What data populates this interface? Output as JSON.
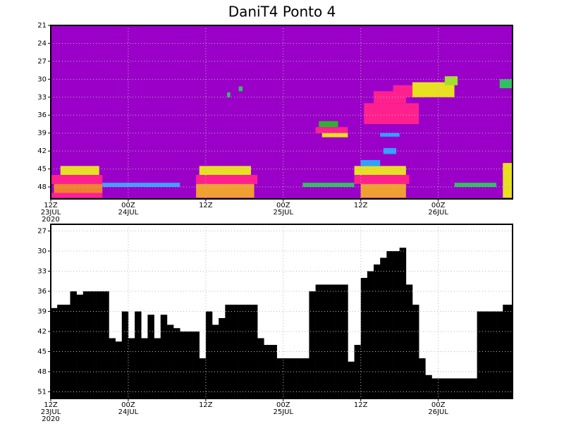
{
  "chart_data": [
    {
      "type": "field",
      "title": "DaniT4 Ponto 4",
      "background": "#9a00c8",
      "xlim": [
        0,
        71.5
      ],
      "ylim": [
        21,
        50
      ],
      "y_inverted": true,
      "grid": true,
      "xticks": [
        {
          "value": 0,
          "label": "12Z\n23JUL\n2020"
        },
        {
          "value": 12,
          "label": "00Z\n24JUL"
        },
        {
          "value": 24,
          "label": "12Z"
        },
        {
          "value": 36,
          "label": "00Z\n25JUL"
        },
        {
          "value": 48,
          "label": "12Z"
        },
        {
          "value": 60,
          "label": "00Z\n26JUL"
        }
      ],
      "yticks": [
        21,
        24,
        27,
        30,
        33,
        36,
        39,
        42,
        45,
        48
      ],
      "patches": [
        {
          "x": [
            1.5,
            7.5
          ],
          "y": [
            44.5,
            46
          ],
          "color": "#e8e020"
        },
        {
          "x": [
            0,
            8
          ],
          "y": [
            46,
            47.5
          ],
          "color": "#ff2090"
        },
        {
          "x": [
            0.5,
            8
          ],
          "y": [
            47.5,
            49
          ],
          "color": "#f08030"
        },
        {
          "x": [
            0,
            8
          ],
          "y": [
            49,
            49.8
          ],
          "color": "#ff2090"
        },
        {
          "x": [
            8,
            20
          ],
          "y": [
            47.3,
            48
          ],
          "color": "#40a0ff"
        },
        {
          "x": [
            23,
            31
          ],
          "y": [
            44.5,
            46
          ],
          "color": "#e8e020"
        },
        {
          "x": [
            22.5,
            32
          ],
          "y": [
            46,
            47.5
          ],
          "color": "#ff2090"
        },
        {
          "x": [
            22.5,
            31.5
          ],
          "y": [
            47.5,
            49.8
          ],
          "color": "#f0a030"
        },
        {
          "x": [
            39,
            47
          ],
          "y": [
            47.3,
            48
          ],
          "color": "#30c060"
        },
        {
          "x": [
            41.5,
            44.5
          ],
          "y": [
            37,
            38
          ],
          "color": "#30b030"
        },
        {
          "x": [
            41,
            46
          ],
          "y": [
            38,
            39
          ],
          "color": "#ff2090"
        },
        {
          "x": [
            42,
            46
          ],
          "y": [
            39,
            39.7
          ],
          "color": "#e8e020"
        },
        {
          "x": [
            47,
            55
          ],
          "y": [
            44.5,
            46
          ],
          "color": "#e8e020"
        },
        {
          "x": [
            47,
            55.5
          ],
          "y": [
            46,
            47.5
          ],
          "color": "#ff2090"
        },
        {
          "x": [
            48,
            55
          ],
          "y": [
            47.5,
            49.8
          ],
          "color": "#f0a030"
        },
        {
          "x": [
            48,
            51
          ],
          "y": [
            43.5,
            44.5
          ],
          "color": "#30a0ff"
        },
        {
          "x": [
            51,
            54
          ],
          "y": [
            39,
            39.6
          ],
          "color": "#30a0ff"
        },
        {
          "x": [
            51.5,
            53.5
          ],
          "y": [
            41.5,
            42.5
          ],
          "color": "#30a0ff"
        },
        {
          "x": [
            48.5,
            57
          ],
          "y": [
            34,
            37.5
          ],
          "color": "#ff2090"
        },
        {
          "x": [
            50,
            55
          ],
          "y": [
            32,
            34
          ],
          "color": "#ff2090"
        },
        {
          "x": [
            53,
            58
          ],
          "y": [
            31,
            33
          ],
          "color": "#ff2090"
        },
        {
          "x": [
            56,
            62.5
          ],
          "y": [
            30.5,
            33
          ],
          "color": "#e8e020"
        },
        {
          "x": [
            61,
            63
          ],
          "y": [
            29.5,
            31
          ],
          "color": "#a0e030"
        },
        {
          "x": [
            62.5,
            69
          ],
          "y": [
            47.3,
            48
          ],
          "color": "#30c060"
        },
        {
          "x": [
            70,
            71.5
          ],
          "y": [
            44,
            49.8
          ],
          "color": "#e8e020"
        },
        {
          "x": [
            69.5,
            71.5
          ],
          "y": [
            30,
            31.5
          ],
          "color": "#30c060"
        },
        {
          "x": [
            27.3,
            27.8
          ],
          "y": [
            32.2,
            33
          ],
          "color": "#30c060"
        },
        {
          "x": [
            29.1,
            29.7
          ],
          "y": [
            31.2,
            32
          ],
          "color": "#30c060"
        }
      ]
    },
    {
      "type": "bar",
      "color": "#000000",
      "xlim": [
        0,
        71.5
      ],
      "ylim": [
        26,
        52
      ],
      "y_inverted": true,
      "grid": true,
      "xticks": [
        {
          "value": 0,
          "label": "12Z\n23JUL\n2020"
        },
        {
          "value": 12,
          "label": "00Z\n24JUL"
        },
        {
          "value": 24,
          "label": "12Z"
        },
        {
          "value": 36,
          "label": "00Z\n25JUL"
        },
        {
          "value": 48,
          "label": "12Z"
        },
        {
          "value": 60,
          "label": "00Z\n26JUL"
        }
      ],
      "yticks": [
        27,
        30,
        33,
        36,
        39,
        42,
        45,
        48,
        51
      ],
      "x": [
        0,
        1,
        2,
        3,
        4,
        5,
        6,
        7,
        8,
        9,
        10,
        11,
        12,
        13,
        14,
        15,
        16,
        17,
        18,
        19,
        20,
        21,
        22,
        23,
        24,
        25,
        26,
        27,
        28,
        29,
        30,
        31,
        32,
        33,
        34,
        35,
        36,
        37,
        38,
        39,
        40,
        41,
        42,
        43,
        44,
        45,
        46,
        47,
        48,
        49,
        50,
        51,
        52,
        53,
        54,
        55,
        56,
        57,
        58,
        59,
        60,
        61,
        62,
        63,
        64,
        65,
        66,
        67,
        68,
        69,
        70,
        71
      ],
      "values": [
        38.5,
        38,
        38,
        36,
        36.5,
        36,
        36,
        36,
        36,
        43,
        43.5,
        39,
        43,
        39,
        43,
        39.5,
        43,
        39.5,
        41,
        41.5,
        42,
        42,
        42,
        46,
        39,
        41,
        40,
        38,
        38,
        38,
        38,
        38,
        43,
        44,
        44,
        46,
        46,
        46,
        46,
        46,
        36,
        35,
        35,
        35,
        35,
        35,
        46.5,
        44,
        34,
        33,
        32,
        31,
        30,
        30,
        29.5,
        35,
        38,
        46,
        48.5,
        49,
        49,
        49,
        49,
        49,
        49,
        49,
        39,
        39,
        39,
        39,
        38,
        38
      ]
    }
  ]
}
